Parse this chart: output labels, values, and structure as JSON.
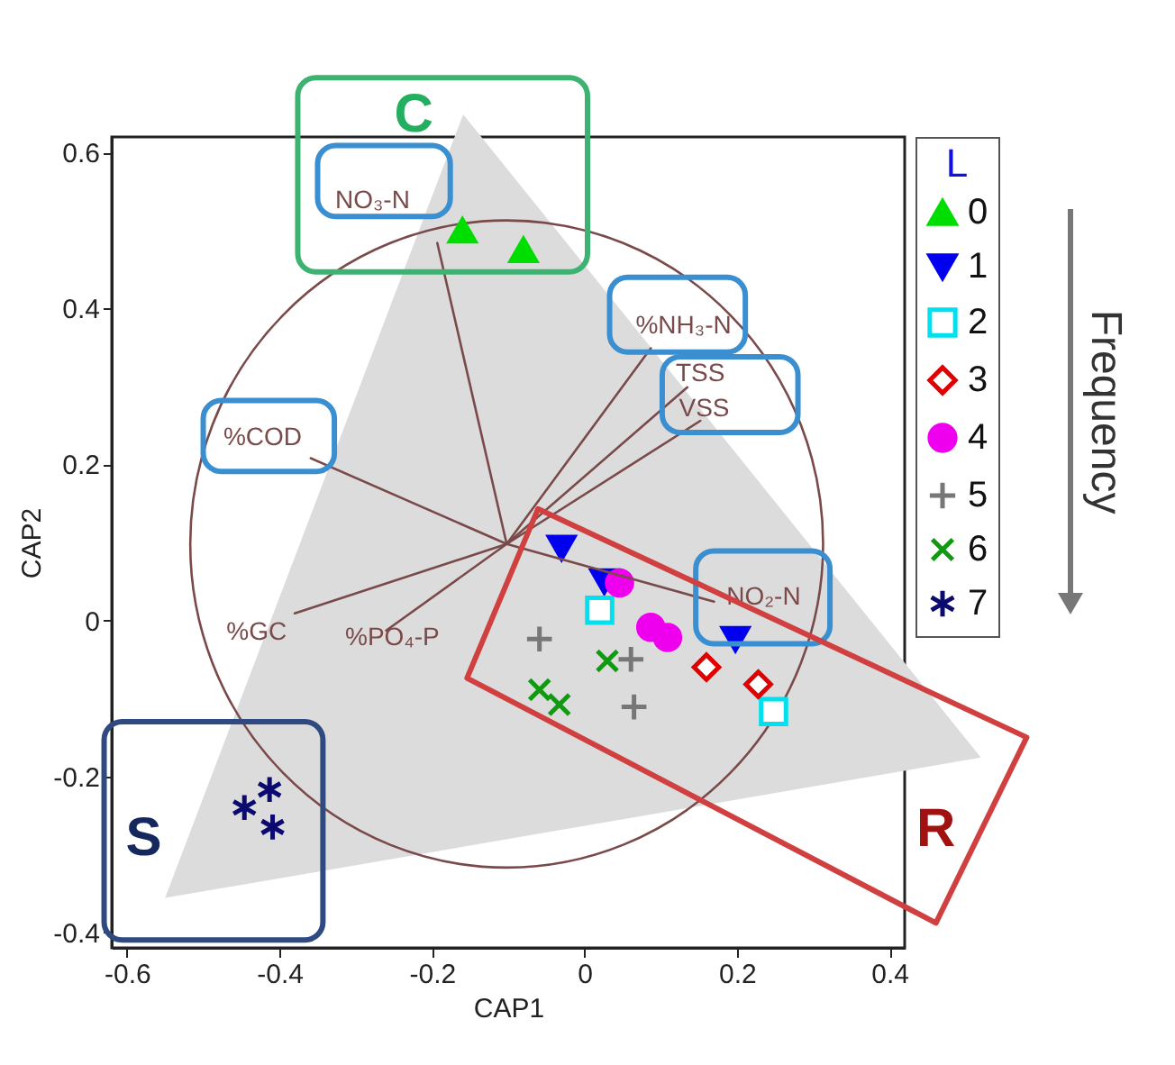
{
  "chart_data": {
    "type": "scatter",
    "xlabel": "CAP1",
    "ylabel": "CAP2",
    "legend_title": "L",
    "legend": "top right",
    "xlim": [
      -0.62,
      0.42
    ],
    "ylim": [
      -0.42,
      0.62
    ],
    "xticks": [
      -0.6,
      -0.4,
      -0.2,
      0,
      0.2,
      0.4
    ],
    "yticks": [
      -0.4,
      -0.2,
      0,
      0.2,
      0.4,
      0.6
    ],
    "series": [
      {
        "name": "0",
        "color": "#00dd00",
        "x": [
          -0.16,
          -0.08
        ],
        "values": [
          0.5,
          0.475
        ]
      },
      {
        "name": "1",
        "color": "#0000ee",
        "x": [
          -0.03,
          0.026,
          0.198
        ],
        "values": [
          0.093,
          0.05,
          -0.024
        ]
      },
      {
        "name": "2",
        "color": "#00e0ee",
        "x": [
          0.02,
          0.248
        ],
        "values": [
          0.013,
          -0.117
        ]
      },
      {
        "name": "3",
        "color": "#e00000",
        "x": [
          0.16,
          0.228
        ],
        "values": [
          -0.06,
          -0.082
        ]
      },
      {
        "name": "4",
        "color": "#ee00ee",
        "x": [
          0.046,
          0.087,
          0.109
        ],
        "values": [
          0.048,
          -0.009,
          -0.022
        ]
      },
      {
        "name": "5",
        "color": "#777777",
        "x": [
          -0.059,
          0.061,
          0.065
        ],
        "values": [
          -0.024,
          -0.05,
          -0.111
        ]
      },
      {
        "name": "6",
        "color": "#119911",
        "x": [
          -0.059,
          -0.033,
          0.03
        ],
        "values": [
          -0.089,
          -0.108,
          -0.052
        ]
      },
      {
        "name": "7",
        "color": "#0a0a70",
        "x": [
          -0.446,
          -0.413,
          -0.409
        ],
        "values": [
          -0.24,
          -0.217,
          -0.265
        ]
      },
      {
        "type": "line",
        "color": "#7a4a4a",
        "x": [
          -0.102,
          -0.193
        ],
        "values": [
          0.098,
          0.484
        ]
      },
      {
        "type": "line",
        "color": "#7a4a4a",
        "x": [
          -0.102,
          -0.359
        ],
        "values": [
          0.098,
          0.208
        ]
      },
      {
        "type": "line",
        "color": "#7a4a4a",
        "x": [
          -0.102,
          0.087
        ],
        "values": [
          0.098,
          0.349
        ]
      },
      {
        "type": "line",
        "color": "#7a4a4a",
        "x": [
          -0.102,
          0.135
        ],
        "values": [
          0.098,
          0.299
        ]
      },
      {
        "type": "line",
        "color": "#7a4a4a",
        "x": [
          -0.102,
          0.152
        ],
        "values": [
          0.098,
          0.256
        ]
      },
      {
        "type": "line",
        "color": "#7a4a4a",
        "x": [
          -0.102,
          0.17
        ],
        "values": [
          0.098,
          0.024
        ]
      },
      {
        "type": "line",
        "color": "#7a4a4a",
        "x": [
          -0.102,
          -0.38
        ],
        "values": [
          0.098,
          0.009
        ]
      },
      {
        "type": "line",
        "color": "#7a4a4a",
        "x": [
          -0.102,
          -0.26
        ],
        "values": [
          0.098,
          -0.013
        ]
      }
    ],
    "annotations": [
      "NO₃-N",
      "%COD",
      "%NH₃-N",
      "TSS",
      "VSS",
      "NO₂-N",
      "%GC",
      "%PO₄-P",
      "C",
      "S",
      "R",
      "Frequency"
    ]
  }
}
